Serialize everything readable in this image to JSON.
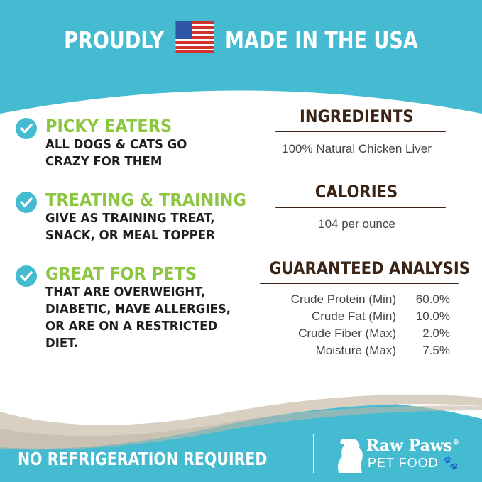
{
  "header": {
    "before_flag": "PROUDLY",
    "after_flag": "MADE IN THE USA",
    "flag_icon": "us-flag-icon"
  },
  "features": [
    {
      "title": "PICKY EATERS",
      "lines": [
        "ALL DOGS & CATS GO",
        "CRAZY FOR THEM"
      ]
    },
    {
      "title": "TREATING & TRAINING",
      "lines": [
        "GIVE AS TRAINING TREAT,",
        "SNACK, OR MEAL TOPPER"
      ]
    },
    {
      "title": "GREAT FOR PETS",
      "lines": [
        "THAT ARE OVERWEIGHT,",
        "DIABETIC, HAVE ALLERGIES,",
        "OR ARE ON A RESTRICTED",
        "DIET."
      ]
    }
  ],
  "ingredients": {
    "heading": "INGREDIENTS",
    "text": "100% Natural Chicken Liver"
  },
  "calories": {
    "heading": "CALORIES",
    "text": "104 per ounce"
  },
  "analysis": {
    "heading": "GUARANTEED ANALYSIS",
    "rows": [
      {
        "label": "Crude Protein (Min)",
        "value": "60.0%"
      },
      {
        "label": "Crude Fat (Min)",
        "value": "10.0%"
      },
      {
        "label": "Crude Fiber (Max)",
        "value": "2.0%"
      },
      {
        "label": "Moisture (Max)",
        "value": "7.5%"
      }
    ]
  },
  "footer": {
    "text": "NO REFRIGERATION REQUIRED",
    "brand": "Raw Paws",
    "registered": "®",
    "brand_sub": "PET FOOD"
  },
  "colors": {
    "teal": "#45bbd1",
    "green": "#8cc63f",
    "brown": "#3a2416",
    "beige": "#d9d0c1"
  }
}
